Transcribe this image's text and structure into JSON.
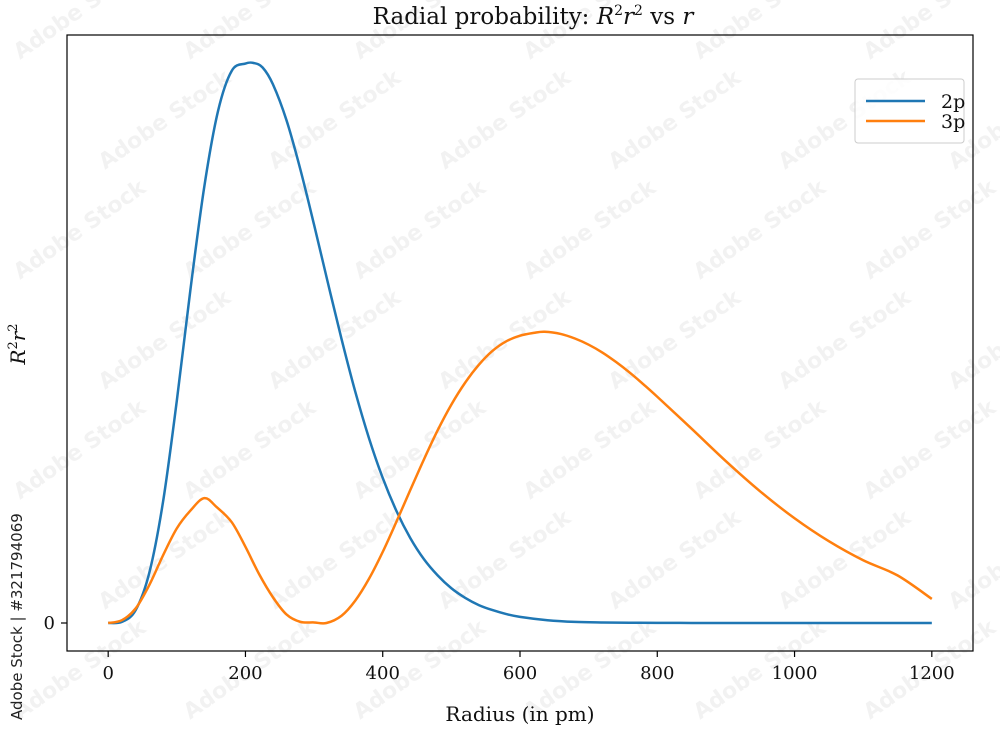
{
  "chart_data": {
    "type": "line",
    "title": "Radial probability: R²r² vs r",
    "title_parts": {
      "prefix": "Radial probability: ",
      "R": "R",
      "sup1": "2",
      "r": "r",
      "sup2": "2",
      "suffix": " vs ",
      "r_end": "r"
    },
    "xlabel": "Radius (in pm)",
    "ylabel_parts": {
      "R": "R",
      "sup1": "2",
      "r": "r",
      "sup2": "2"
    },
    "xlim": [
      -60,
      1260
    ],
    "ylim": [
      -0.05,
      1.05
    ],
    "xticks": [
      0,
      200,
      400,
      600,
      800,
      1000,
      1200
    ],
    "yticks": [
      0
    ],
    "legend_position": "top-right",
    "series": [
      {
        "name": "2p",
        "color": "#1f77b4",
        "x": [
          0,
          20,
          40,
          60,
          80,
          100,
          120,
          140,
          160,
          180,
          200,
          212,
          225,
          240,
          260,
          280,
          300,
          320,
          340,
          360,
          380,
          400,
          420,
          440,
          460,
          480,
          500,
          520,
          540,
          560,
          580,
          600,
          640,
          680,
          720,
          760,
          800,
          850,
          900,
          950,
          1000,
          1100,
          1200
        ],
        "y": [
          0,
          0.002,
          0.023,
          0.09,
          0.217,
          0.397,
          0.597,
          0.779,
          0.914,
          0.986,
          0.999,
          1.0,
          0.992,
          0.962,
          0.897,
          0.81,
          0.711,
          0.608,
          0.507,
          0.413,
          0.33,
          0.259,
          0.2,
          0.152,
          0.114,
          0.085,
          0.062,
          0.045,
          0.032,
          0.023,
          0.016,
          0.011,
          0.005,
          0.002,
          0.001,
          0.0005,
          0.0002,
          0.0001,
          0,
          0,
          0,
          0,
          0
        ]
      },
      {
        "name": "3p",
        "color": "#ff7f0e",
        "x": [
          0,
          20,
          40,
          60,
          80,
          100,
          120,
          140,
          158,
          180,
          200,
          220,
          240,
          260,
          280,
          300,
          318,
          340,
          360,
          380,
          400,
          420,
          440,
          460,
          480,
          500,
          520,
          540,
          560,
          580,
          600,
          620,
          636,
          660,
          680,
          700,
          720,
          740,
          760,
          780,
          800,
          850,
          900,
          950,
          1000,
          1050,
          1100,
          1150,
          1200
        ],
        "y": [
          0,
          0.005,
          0.026,
          0.068,
          0.121,
          0.169,
          0.201,
          0.223,
          0.207,
          0.18,
          0.136,
          0.087,
          0.046,
          0.015,
          0.002,
          0.001,
          0,
          0.013,
          0.04,
          0.079,
          0.127,
          0.181,
          0.237,
          0.292,
          0.344,
          0.39,
          0.429,
          0.461,
          0.486,
          0.503,
          0.513,
          0.518,
          0.52,
          0.516,
          0.508,
          0.497,
          0.483,
          0.466,
          0.447,
          0.426,
          0.404,
          0.347,
          0.289,
          0.235,
          0.187,
          0.146,
          0.112,
          0.085,
          0.043
        ]
      }
    ]
  },
  "watermark": {
    "side_text": "Adobe Stock | #321794069",
    "tile_text": "Adobe Stock"
  }
}
